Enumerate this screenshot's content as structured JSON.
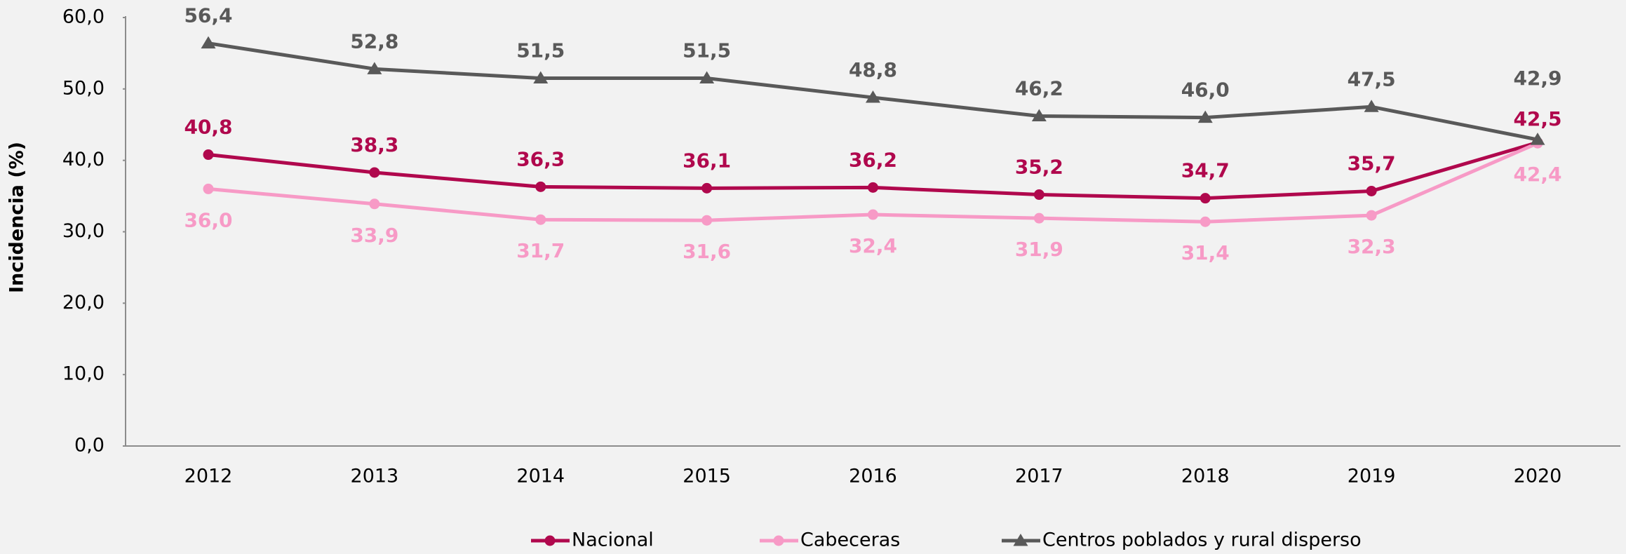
{
  "chart_data": {
    "type": "line",
    "ylabel": "Incidencia (%)",
    "categories": [
      "2012",
      "2013",
      "2014",
      "2015",
      "2016",
      "2017",
      "2018",
      "2019",
      "2020"
    ],
    "ylim": [
      0,
      60
    ],
    "yticks": [
      {
        "value": 0,
        "label": "0,0"
      },
      {
        "value": 10,
        "label": "10,0"
      },
      {
        "value": 20,
        "label": "20,0"
      },
      {
        "value": 30,
        "label": "30,0"
      },
      {
        "value": 40,
        "label": "40,0"
      },
      {
        "value": 50,
        "label": "50,0"
      },
      {
        "value": 60,
        "label": "60,0"
      }
    ],
    "grid": false,
    "legend": "bottom",
    "series": [
      {
        "name": "Nacional",
        "color": "#b0084d",
        "marker": "circle",
        "label_side": "above",
        "values": [
          40.8,
          38.3,
          36.3,
          36.1,
          36.2,
          35.2,
          34.7,
          35.7,
          42.5
        ],
        "value_labels": [
          "40,8",
          "38,3",
          "36,3",
          "36,1",
          "36,2",
          "35,2",
          "34,7",
          "35,7",
          "42,5"
        ]
      },
      {
        "name": "Cabeceras",
        "color": "#f79ac6",
        "marker": "circle",
        "label_side": "below",
        "values": [
          36.0,
          33.9,
          31.7,
          31.6,
          32.4,
          31.9,
          31.4,
          32.3,
          42.4
        ],
        "value_labels": [
          "36,0",
          "33,9",
          "31,7",
          "31,6",
          "32,4",
          "31,9",
          "31,4",
          "32,3",
          "42,4"
        ]
      },
      {
        "name": "Centros poblados y rural disperso",
        "color": "#595959",
        "marker": "triangle",
        "label_side": "above",
        "values": [
          56.4,
          52.8,
          51.5,
          51.5,
          48.8,
          46.2,
          46.0,
          47.5,
          42.9
        ],
        "value_labels": [
          "56,4",
          "52,8",
          "51,5",
          "51,5",
          "48,8",
          "46,2",
          "46,0",
          "47,5",
          "42,9"
        ]
      }
    ]
  }
}
